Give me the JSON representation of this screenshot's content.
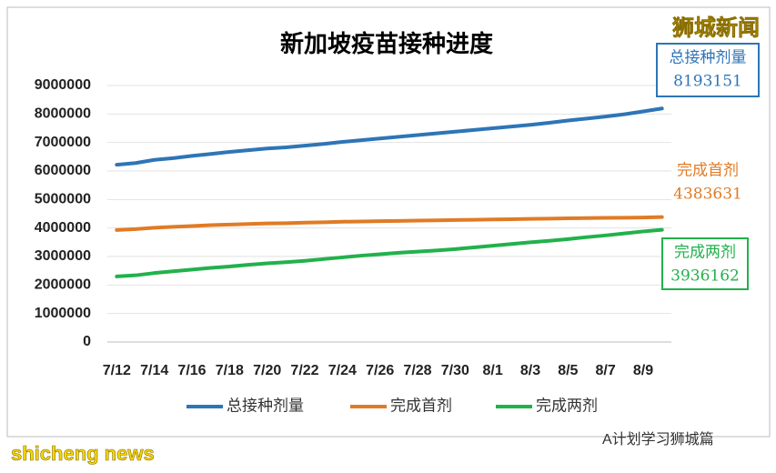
{
  "chart_data": {
    "type": "line",
    "title": "新加坡疫苗接种进度",
    "categories": [
      "7/12",
      null,
      "7/14",
      null,
      "7/16",
      null,
      "7/18",
      null,
      "7/20",
      null,
      "7/22",
      null,
      "7/24",
      null,
      "7/26",
      null,
      "7/28",
      null,
      "7/30",
      null,
      "8/1",
      null,
      "8/3",
      null,
      "8/5",
      null,
      "8/7",
      null,
      "8/9",
      null
    ],
    "series": [
      {
        "name": "总接种剂量",
        "color": "#2e75b6",
        "values": [
          6220000,
          6280000,
          6390000,
          6450000,
          6530000,
          6600000,
          6670000,
          6730000,
          6790000,
          6830000,
          6890000,
          6950000,
          7020000,
          7080000,
          7140000,
          7200000,
          7260000,
          7320000,
          7380000,
          7440000,
          7500000,
          7560000,
          7620000,
          7690000,
          7770000,
          7840000,
          7910000,
          7990000,
          8090000,
          8193151
        ]
      },
      {
        "name": "完成首剂",
        "color": "#e07b25",
        "values": [
          3930000,
          3960000,
          4010000,
          4040000,
          4070000,
          4100000,
          4120000,
          4140000,
          4160000,
          4170000,
          4190000,
          4200000,
          4220000,
          4230000,
          4240000,
          4250000,
          4260000,
          4270000,
          4280000,
          4290000,
          4300000,
          4310000,
          4320000,
          4330000,
          4340000,
          4350000,
          4355000,
          4360000,
          4370000,
          4383631
        ]
      },
      {
        "name": "完成两剂",
        "color": "#22b14c",
        "values": [
          2300000,
          2340000,
          2420000,
          2480000,
          2540000,
          2600000,
          2650000,
          2710000,
          2760000,
          2800000,
          2850000,
          2910000,
          2970000,
          3030000,
          3080000,
          3130000,
          3170000,
          3210000,
          3260000,
          3320000,
          3380000,
          3440000,
          3500000,
          3550000,
          3610000,
          3680000,
          3740000,
          3810000,
          3880000,
          3936162
        ]
      }
    ],
    "ylim": [
      0,
      9000000
    ],
    "yticks": [
      0,
      1000000,
      2000000,
      3000000,
      4000000,
      5000000,
      6000000,
      7000000,
      8000000,
      9000000
    ],
    "grid": true,
    "legend": "bottom"
  },
  "brand": "狮城新闻",
  "footer_left": "shicheng news",
  "footer_right": "A计划学习狮城篇"
}
